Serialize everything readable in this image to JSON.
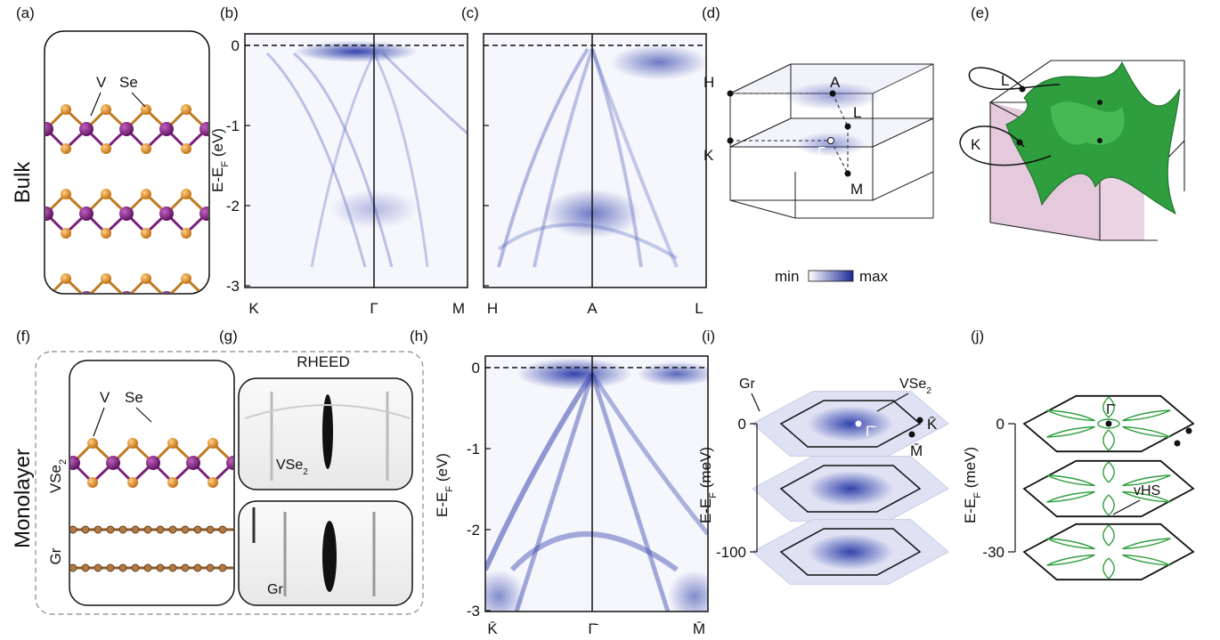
{
  "row_labels": {
    "top": "Bulk",
    "bottom": "Monolayer"
  },
  "panel_labels": [
    "(a)",
    "(b)",
    "(c)",
    "(d)",
    "(e)",
    "(f)",
    "(g)",
    "(h)",
    "(i)",
    "(j)"
  ],
  "panel_a": {
    "atom_v": "V",
    "atom_se": "Se"
  },
  "panel_b": {
    "ylabel_main": "E-E",
    "ylabel_sub": "F",
    "ylabel_unit": " (eV)",
    "yticks": [
      "0",
      "-1",
      "-2",
      "-3"
    ],
    "xticks": [
      "K",
      "Γ",
      "M"
    ]
  },
  "panel_c": {
    "xticks": [
      "H",
      "A",
      "L"
    ]
  },
  "panel_d": {
    "points": [
      "H",
      "A",
      "L",
      "K",
      "Γ",
      "M"
    ]
  },
  "panel_e": {
    "points": [
      "L",
      "K"
    ]
  },
  "colorbar": {
    "min": "min",
    "max": "max",
    "min_color": "#ffffff",
    "max_color": "#1e2a96"
  },
  "panel_f": {
    "atom_v": "V",
    "atom_se": "Se",
    "layer_vse2_main": "VSe",
    "layer_vse2_sub": "2",
    "layer_gr": "Gr"
  },
  "panel_g": {
    "title": "RHEED",
    "label_top_main": "VSe",
    "label_top_sub": "2",
    "label_bottom": "Gr"
  },
  "panel_h": {
    "ylabel_main": "E-E",
    "ylabel_sub": "F",
    "ylabel_unit": " (eV)",
    "yticks": [
      "0",
      "-1",
      "-2",
      "-3"
    ],
    "xticks": [
      "K̄",
      "Γ̄",
      "M̄"
    ]
  },
  "panel_i": {
    "ylabel_main": "E-E",
    "ylabel_sub": "F",
    "ylabel_unit": " (meV)",
    "yticks": [
      "0",
      "-100"
    ],
    "label_gr": "Gr",
    "label_vse2_main": "VSe",
    "label_vse2_sub": "2",
    "points": [
      "Γ̄",
      "K̄",
      "M̄"
    ]
  },
  "panel_j": {
    "ylabel_main": "E-E",
    "ylabel_sub": "F",
    "ylabel_unit": " (meV)",
    "yticks": [
      "0",
      "-30"
    ],
    "label_vhs": "vHS",
    "point_gamma": "Γ̄"
  },
  "colors": {
    "vanadium": "#7a1f7a",
    "selenium": "#e08a1a",
    "carbon": "#8b5a2b",
    "fermi_surface": "#2e9e3e",
    "arpes": "#2a3aa8"
  }
}
